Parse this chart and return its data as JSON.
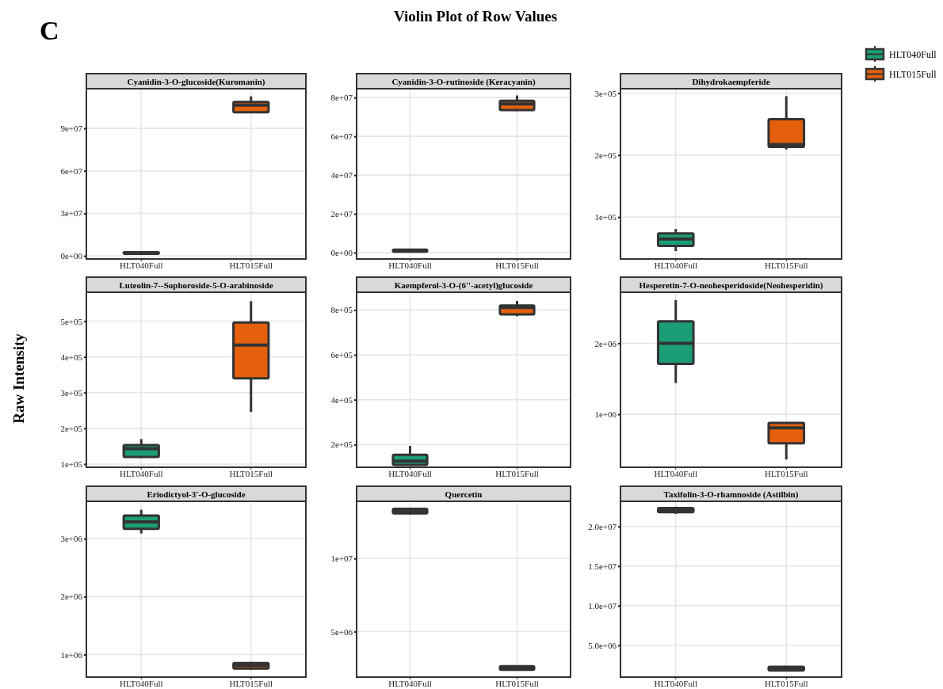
{
  "chart_data": [
    {
      "type": "other",
      "title": "Violin Plot of Row Values",
      "ylabel": "Raw Intensity",
      "annotations": [
        "C"
      ]
    },
    {
      "type": "box",
      "title": "Cyanidin-3-O-glucoside(Kuromanin)",
      "categories": [
        "HLT040Full",
        "HLT015Full"
      ],
      "ylim": [
        -2200000,
        118000000
      ],
      "yticks": [
        {
          "value": 0,
          "label": "0e+00"
        },
        {
          "value": 30000000,
          "label": "3e+07"
        },
        {
          "value": 60000000,
          "label": "6e+07"
        },
        {
          "value": 90000000,
          "label": "9e+07"
        }
      ],
      "grid": true,
      "legend": "right",
      "series": [
        {
          "name": "HLT040Full",
          "color": "#1b9e77",
          "boxes": [
            {
              "low": 1200000,
              "q1": 1500000,
              "median": 2000000,
              "q3": 2500000,
              "high": 2800000
            },
            null
          ]
        },
        {
          "name": "HLT015Full",
          "color": "#e5600c",
          "boxes": [
            null,
            {
              "low": 101000000,
              "q1": 101300000,
              "median": 106400000,
              "q3": 108600000,
              "high": 112600000
            }
          ]
        }
      ]
    },
    {
      "type": "box",
      "title": "Cyanidin-3-O-rutinoside (Keracyanin)",
      "categories": [
        "HLT040Full",
        "HLT015Full"
      ],
      "ylim": [
        -3300000,
        84600000
      ],
      "yticks": [
        {
          "value": 0,
          "label": "0e+00"
        },
        {
          "value": 20000000,
          "label": "2e+07"
        },
        {
          "value": 40000000,
          "label": "4e+07"
        },
        {
          "value": 60000000,
          "label": "6e+07"
        },
        {
          "value": 80000000,
          "label": "8e+07"
        }
      ],
      "grid": true,
      "series": [
        {
          "color": "#1b9e77",
          "boxes": [
            {
              "low": 300000,
              "q1": 500000,
              "median": 1000000,
              "q3": 1500000,
              "high": 1700000
            },
            null
          ]
        },
        {
          "color": "#e5600c",
          "boxes": [
            null,
            {
              "low": 73000000,
              "q1": 73600000,
              "median": 76700000,
              "q3": 78400000,
              "high": 81100000
            }
          ]
        }
      ]
    },
    {
      "type": "box",
      "title": "Dihydrokaempferide",
      "categories": [
        "HLT040Full",
        "HLT015Full"
      ],
      "ylim": [
        32500,
        307000
      ],
      "yticks": [
        {
          "value": 100000,
          "label": "1e+05"
        },
        {
          "value": 200000,
          "label": "2e+05"
        },
        {
          "value": 300000,
          "label": "3e+05"
        }
      ],
      "grid": true,
      "series": [
        {
          "color": "#1b9e77",
          "boxes": [
            {
              "low": 45200,
              "q1": 53600,
              "median": 64700,
              "q3": 73600,
              "high": 80900
            },
            null
          ]
        },
        {
          "color": "#e5600c",
          "boxes": [
            null,
            {
              "low": 209000,
              "q1": 213000,
              "median": 217000,
              "q3": 258000,
              "high": 295000
            }
          ]
        }
      ]
    },
    {
      "type": "box",
      "title": "Luteolin-7--Sophoroside-5-O-arabinoside",
      "categories": [
        "HLT040Full",
        "HLT015Full"
      ],
      "ylim": [
        91000,
        581000
      ],
      "yticks": [
        {
          "value": 100000,
          "label": "1e+05"
        },
        {
          "value": 200000,
          "label": "2e+05"
        },
        {
          "value": 300000,
          "label": "3e+05"
        },
        {
          "value": 400000,
          "label": "4e+05"
        },
        {
          "value": 500000,
          "label": "5e+05"
        }
      ],
      "grid": true,
      "series": [
        {
          "color": "#1b9e77",
          "boxes": [
            {
              "low": 117000,
              "q1": 120000,
              "median": 143000,
              "q3": 153000,
              "high": 170000
            },
            null
          ]
        },
        {
          "color": "#e5600c",
          "boxes": [
            null,
            {
              "low": 246000,
              "q1": 340000,
              "median": 433000,
              "q3": 496000,
              "high": 556000
            }
          ]
        }
      ]
    },
    {
      "type": "box",
      "title": "Kaempferol-3-O-(6''-acetyl)glucoside",
      "categories": [
        "HLT040Full",
        "HLT015Full"
      ],
      "ylim": [
        99000,
        879000
      ],
      "yticks": [
        {
          "value": 200000,
          "label": "2e+05"
        },
        {
          "value": 400000,
          "label": "4e+05"
        },
        {
          "value": 600000,
          "label": "6e+05"
        },
        {
          "value": 800000,
          "label": "8e+05"
        }
      ],
      "grid": true,
      "series": [
        {
          "color": "#1b9e77",
          "boxes": [
            {
              "low": 105000,
              "q1": 110000,
              "median": 126000,
              "q3": 155000,
              "high": 194000
            },
            null
          ]
        },
        {
          "color": "#e5600c",
          "boxes": [
            null,
            {
              "low": 772000,
              "q1": 780000,
              "median": 811000,
              "q3": 820000,
              "high": 840000
            }
          ]
        }
      ]
    },
    {
      "type": "box",
      "title": "Hesperetin-7-O-neohesperidoside(Neohesperidin)",
      "categories": [
        "HLT040Full",
        "HLT015Full"
      ],
      "ylim": [
        253000,
        2720000
      ],
      "yticks": [
        {
          "value": 1000000,
          "label": "1e+06"
        },
        {
          "value": 2000000,
          "label": "2e+06"
        }
      ],
      "grid": true,
      "series": [
        {
          "color": "#1b9e77",
          "boxes": [
            {
              "low": 1440000,
              "q1": 1710000,
              "median": 2000000,
              "q3": 2310000,
              "high": 2610000
            },
            null
          ]
        },
        {
          "color": "#e5600c",
          "boxes": [
            null,
            {
              "low": 363000,
              "q1": 592000,
              "median": 809000,
              "q3": 879000,
              "high": 890000
            }
          ]
        }
      ]
    },
    {
      "type": "box",
      "title": "Eriodictyol-3'-O-glucoside",
      "categories": [
        "HLT040Full",
        "HLT015Full"
      ],
      "ylim": [
        610000,
        3645000
      ],
      "yticks": [
        {
          "value": 1000000,
          "label": "1e+06"
        },
        {
          "value": 2000000,
          "label": "2e+06"
        },
        {
          "value": 3000000,
          "label": "3e+06"
        }
      ],
      "grid": true,
      "series": [
        {
          "color": "#1b9e77",
          "boxes": [
            {
              "low": 3090000,
              "q1": 3170000,
              "median": 3290000,
              "q3": 3400000,
              "high": 3500000
            },
            null
          ]
        },
        {
          "color": "#e5600c",
          "boxes": [
            null,
            {
              "low": 737000,
              "q1": 758000,
              "median": 810000,
              "q3": 851000,
              "high": 873000
            }
          ]
        }
      ]
    },
    {
      "type": "box",
      "title": "Quercetin",
      "categories": [
        "HLT040Full",
        "HLT015Full"
      ],
      "ylim": [
        1890000,
        13910000
      ],
      "yticks": [
        {
          "value": 5000000,
          "label": "5e+06"
        },
        {
          "value": 10000000,
          "label": "1e+07"
        }
      ],
      "grid": true,
      "series": [
        {
          "color": "#1b9e77",
          "boxes": [
            {
              "low": 13000000,
              "q1": 13090000,
              "median": 13230000,
              "q3": 13390000,
              "high": 13450000
            },
            null
          ]
        },
        {
          "color": "#e5600c",
          "boxes": [
            null,
            {
              "low": 2330000,
              "q1": 2390000,
              "median": 2520000,
              "q3": 2640000,
              "high": 2700000
            }
          ]
        }
      ]
    },
    {
      "type": "box",
      "title": "Taxifolin-3-O-rhamnoside (Astilbin)",
      "categories": [
        "HLT040Full",
        "HLT015Full"
      ],
      "ylim": [
        980000,
        23180000
      ],
      "yticks": [
        {
          "value": 5000000,
          "label": "5.0e+06"
        },
        {
          "value": 10000000,
          "label": "1.0e+07"
        },
        {
          "value": 15000000,
          "label": "1.5e+07"
        },
        {
          "value": 20000000,
          "label": "2.0e+07"
        }
      ],
      "grid": true,
      "series": [
        {
          "color": "#1b9e77",
          "boxes": [
            {
              "low": 21600000,
              "q1": 21800000,
              "median": 22090000,
              "q3": 22340000,
              "high": 22500000
            },
            null
          ]
        },
        {
          "color": "#e5600c",
          "boxes": [
            null,
            {
              "low": 1750000,
              "q1": 1830000,
              "median": 2060000,
              "q3": 2290000,
              "high": 2400000
            }
          ]
        }
      ]
    }
  ]
}
